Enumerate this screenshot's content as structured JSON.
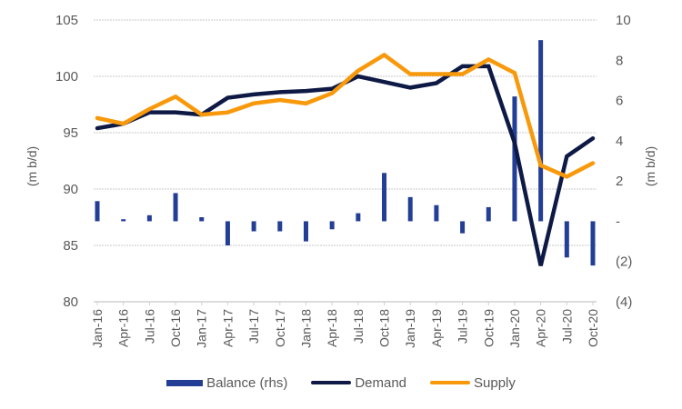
{
  "chart_data": {
    "type": "bar+line",
    "title": "",
    "categories": [
      "Jan-16",
      "Apr-16",
      "Jul-16",
      "Oct-16",
      "Jan-17",
      "Apr-17",
      "Jul-17",
      "Oct-17",
      "Jan-18",
      "Apr-18",
      "Jul-18",
      "Oct-18",
      "Jan-19",
      "Apr-19",
      "Jul-19",
      "Oct-19",
      "Jan-20",
      "Apr-20",
      "Jul-20",
      "Oct-20"
    ],
    "series": [
      {
        "name": "Balance (rhs)",
        "type": "bar",
        "axis": "right",
        "color": "#233e95",
        "values": [
          1.0,
          0.1,
          0.3,
          1.4,
          0.2,
          -1.2,
          -0.5,
          -0.5,
          -1.0,
          -0.4,
          0.4,
          2.4,
          1.2,
          0.8,
          -0.6,
          0.7,
          6.2,
          9.0,
          -1.8,
          -2.2
        ]
      },
      {
        "name": "Demand",
        "type": "line",
        "axis": "left",
        "color": "#0e1a45",
        "values": [
          95.4,
          95.8,
          96.8,
          96.8,
          96.6,
          98.1,
          98.4,
          98.6,
          98.7,
          98.9,
          100.0,
          99.5,
          99.0,
          99.4,
          100.9,
          100.9,
          94.1,
          83.2,
          92.9,
          94.5
        ]
      },
      {
        "name": "Supply",
        "type": "line",
        "axis": "left",
        "color": "#f8990c",
        "values": [
          96.3,
          95.8,
          97.1,
          98.2,
          96.6,
          96.8,
          97.6,
          97.9,
          97.6,
          98.5,
          100.5,
          101.9,
          100.2,
          100.2,
          100.2,
          101.5,
          100.3,
          92.1,
          91.1,
          92.3
        ]
      }
    ],
    "y_left": {
      "label": "(m b/d)",
      "ylim": [
        80,
        105
      ],
      "ticks": [
        80,
        85,
        90,
        95,
        100,
        105
      ],
      "tick_labels": [
        "80",
        "85",
        "90",
        "95",
        "100",
        "105"
      ]
    },
    "y_right": {
      "label": "(m b/d)",
      "ylim": [
        -4,
        10
      ],
      "ticks": [
        -4,
        -2,
        0,
        2,
        4,
        6,
        8,
        10
      ],
      "tick_labels": [
        "(4)",
        "(2)",
        "-",
        "2",
        "4",
        "6",
        "8",
        "10"
      ]
    },
    "grid": true,
    "legend": "bottom"
  }
}
